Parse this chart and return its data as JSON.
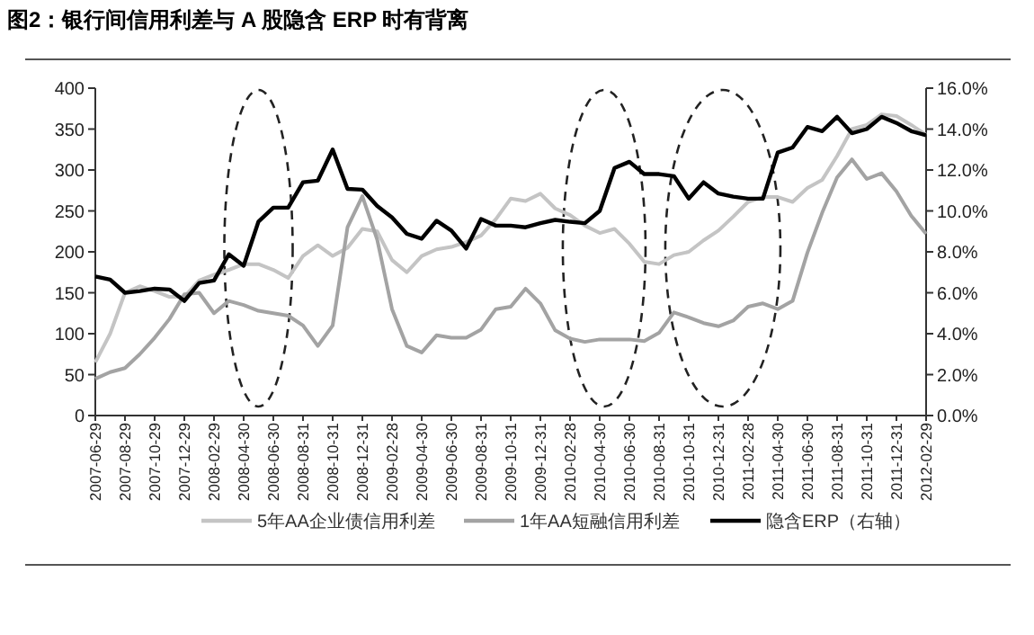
{
  "chart_data": {
    "type": "line",
    "title": "图2：银行间信用利差与 A 股隐含 ERP 时有背离",
    "categories": [
      "2007-06-29",
      null,
      "2007-08-29",
      null,
      "2007-10-29",
      null,
      "2007-12-29",
      null,
      "2008-02-29",
      null,
      "2008-04-30",
      null,
      "2008-06-30",
      null,
      "2008-08-31",
      null,
      "2008-10-31",
      null,
      "2008-12-31",
      null,
      "2009-02-28",
      null,
      "2009-04-30",
      null,
      "2009-06-30",
      null,
      "2009-08-31",
      null,
      "2009-10-31",
      null,
      "2009-12-31",
      null,
      "2010-02-28",
      null,
      "2010-04-30",
      null,
      "2010-06-30",
      null,
      "2010-08-31",
      null,
      "2010-10-31",
      null,
      "2010-12-31",
      null,
      "2011-02-28",
      null,
      "2011-04-30",
      null,
      "2011-06-30",
      null,
      "2011-08-31",
      null,
      "2011-10-31",
      null,
      "2011-12-31",
      null,
      "2012-02-29"
    ],
    "series": [
      {
        "name": "5年AA企业债信用利差",
        "color": "#c4c4c4",
        "values": [
          65,
          100,
          150,
          158,
          152,
          145,
          145,
          165,
          172,
          178,
          185,
          185,
          178,
          168,
          195,
          208,
          195,
          205,
          228,
          225,
          190,
          175,
          195,
          203,
          206,
          212,
          220,
          240,
          265,
          262,
          271,
          253,
          245,
          232,
          223,
          228,
          210,
          188,
          185,
          196,
          200,
          214,
          226,
          243,
          261,
          267,
          267,
          261,
          278,
          288,
          317,
          350,
          355,
          368,
          366,
          355,
          343
        ]
      },
      {
        "name": "1年AA短融信用利差",
        "color": "#a3a3a3",
        "values": [
          45,
          53,
          58,
          75,
          95,
          118,
          148,
          150,
          125,
          140,
          135,
          128,
          125,
          122,
          110,
          85,
          110,
          230,
          268,
          215,
          130,
          85,
          77,
          98,
          95,
          95,
          105,
          130,
          133,
          155,
          137,
          104,
          94,
          90,
          93,
          93,
          93,
          91,
          101,
          126,
          120,
          113,
          109,
          116,
          133,
          137,
          130,
          140,
          199,
          248,
          291,
          313,
          289,
          296,
          274,
          244,
          222
        ]
      },
      {
        "name": "隐含ERP（右轴）",
        "color": "#000000",
        "axis": "y2",
        "values": [
          6.8,
          6.64,
          6.0,
          6.08,
          6.2,
          6.16,
          5.6,
          6.48,
          6.6,
          7.88,
          7.32,
          9.48,
          10.16,
          10.16,
          11.4,
          11.48,
          13.0,
          11.08,
          11.04,
          10.24,
          9.68,
          8.88,
          8.64,
          9.52,
          9.04,
          8.16,
          9.6,
          9.28,
          9.28,
          9.2,
          9.4,
          9.56,
          9.47,
          9.4,
          10.0,
          12.1,
          12.4,
          11.8,
          11.8,
          11.7,
          10.6,
          11.4,
          10.85,
          10.7,
          10.6,
          10.6,
          12.85,
          13.1,
          14.1,
          13.9,
          14.6,
          13.8,
          14.0,
          14.6,
          14.3,
          13.9,
          13.7
        ]
      }
    ],
    "ylim": [
      0,
      400
    ],
    "yticks": [
      0,
      50,
      100,
      150,
      200,
      250,
      300,
      350,
      400
    ],
    "y2lim": [
      0,
      16
    ],
    "y2ticks": [
      {
        "value": 0,
        "label": "0.0%"
      },
      {
        "value": 2,
        "label": "2.0%"
      },
      {
        "value": 4,
        "label": "4.0%"
      },
      {
        "value": 6,
        "label": "6.0%"
      },
      {
        "value": 8,
        "label": "8.0%"
      },
      {
        "value": 10,
        "label": "10.0%"
      },
      {
        "value": 12,
        "label": "12.0%"
      },
      {
        "value": 14,
        "label": "14.0%"
      },
      {
        "value": 16,
        "label": "16.0%"
      }
    ],
    "grid": false,
    "legend": "bottom",
    "marker": "none",
    "line_style": "solid"
  }
}
